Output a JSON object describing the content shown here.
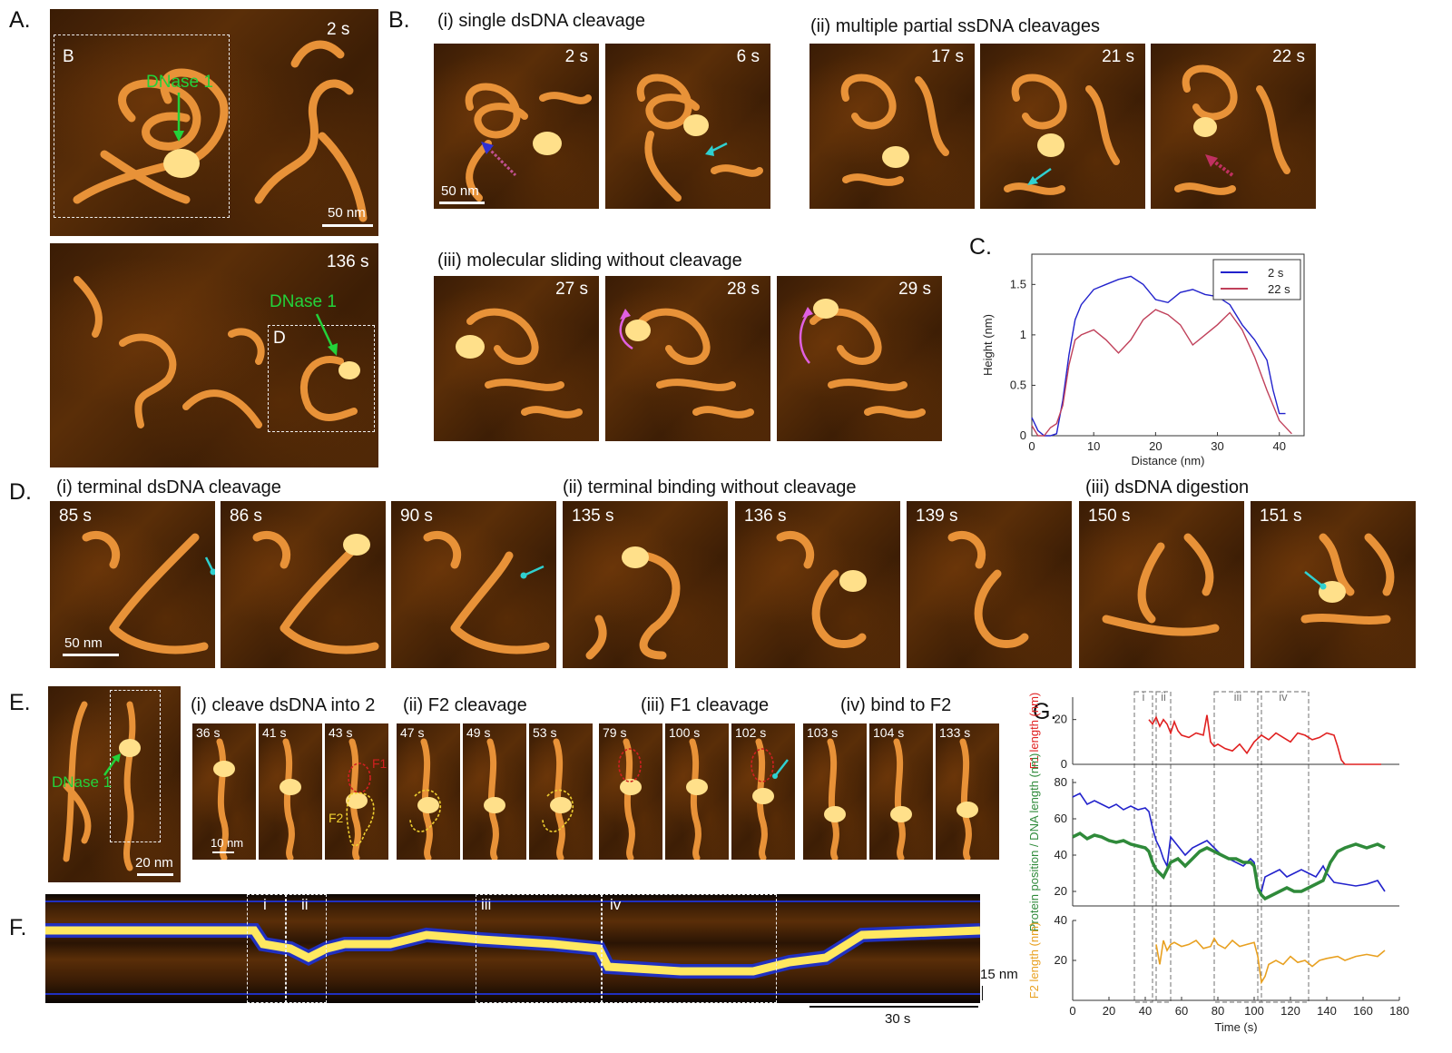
{
  "panel_labels": {
    "A": "A.",
    "B": "B.",
    "C": "C.",
    "D": "D.",
    "E": "E.",
    "F": "F.",
    "G": "G."
  },
  "panelA": {
    "top_time": "2 s",
    "bottom_time": "136 s",
    "box_B": "B",
    "box_D": "D",
    "protein_label": "DNase 1",
    "scale": "50 nm"
  },
  "panelB": {
    "i_title": "(i) single dsDNA cleavage",
    "ii_title": "(ii) multiple partial ssDNA cleavages",
    "iii_title": "(iii) molecular sliding without cleavage",
    "i_times": [
      "2 s",
      "6 s"
    ],
    "ii_times": [
      "17 s",
      "21 s",
      "22 s"
    ],
    "iii_times": [
      "27 s",
      "28 s",
      "29 s"
    ],
    "scale": "50 nm"
  },
  "panelD": {
    "i_title": "(i) terminal dsDNA cleavage",
    "ii_title": "(ii) terminal binding without cleavage",
    "iii_title": "(iii) dsDNA digestion",
    "times": [
      "85 s",
      "86 s",
      "90 s",
      "135 s",
      "136 s",
      "139 s",
      "150 s",
      "151 s"
    ],
    "scale": "50 nm"
  },
  "panelE": {
    "protein_label": "DNase 1",
    "scale_large": "20 nm",
    "scale_small": "10 nm",
    "i_title": "(i) cleave dsDNA into 2",
    "ii_title": "(ii) F2 cleavage",
    "iii_title": "(iii) F1 cleavage",
    "iv_title": "(iv) bind to F2",
    "times": [
      "36 s",
      "41 s",
      "43 s",
      "47 s",
      "49 s",
      "53 s",
      "79 s",
      "100 s",
      "102 s",
      "103 s",
      "104 s",
      "133 s"
    ],
    "f1": "F1",
    "f2": "F2"
  },
  "panelF": {
    "regions": [
      "i",
      "ii",
      "iii",
      "iv"
    ],
    "scale_y": "15 nm",
    "scale_x": "30 s"
  },
  "chart_data": [
    {
      "type": "line",
      "panel": "C",
      "xlabel": "Distance (nm)",
      "ylabel": "Height (nm)",
      "xlim": [
        0,
        44
      ],
      "ylim": [
        0,
        1.8
      ],
      "xticks": [
        0,
        10,
        20,
        30,
        40
      ],
      "yticks": [
        0,
        0.5,
        1,
        1.5
      ],
      "legend_position": "top-right",
      "series": [
        {
          "name": "2 s",
          "color": "#2222cc",
          "x": [
            0,
            1,
            2,
            3,
            4,
            5,
            6,
            7,
            8,
            10,
            12,
            14,
            16,
            18,
            20,
            22,
            24,
            26,
            28,
            30,
            32,
            34,
            36,
            38,
            39,
            40,
            41
          ],
          "y": [
            0.18,
            0.05,
            0.0,
            0.0,
            0.02,
            0.35,
            0.8,
            1.15,
            1.3,
            1.45,
            1.5,
            1.55,
            1.58,
            1.5,
            1.35,
            1.32,
            1.42,
            1.45,
            1.4,
            1.38,
            1.3,
            1.1,
            0.95,
            0.75,
            0.45,
            0.22,
            0.22
          ]
        },
        {
          "name": "22 s",
          "color": "#c0405a",
          "x": [
            0,
            1,
            2,
            3,
            4,
            5,
            6,
            7,
            8,
            10,
            12,
            14,
            16,
            18,
            20,
            22,
            24,
            26,
            28,
            30,
            32,
            34,
            36,
            38,
            40,
            42
          ],
          "y": [
            0.1,
            0.0,
            0.0,
            0.08,
            0.12,
            0.3,
            0.7,
            0.95,
            1.0,
            1.05,
            0.95,
            0.82,
            0.95,
            1.15,
            1.25,
            1.2,
            1.1,
            0.9,
            1.0,
            1.1,
            1.22,
            1.05,
            0.78,
            0.45,
            0.15,
            0.02
          ]
        }
      ]
    },
    {
      "type": "line",
      "panel": "G",
      "xlabel": "Time (s)",
      "xlim": [
        0,
        180
      ],
      "xticks": [
        0,
        20,
        40,
        60,
        80,
        100,
        120,
        140,
        160,
        180
      ],
      "regions": [
        {
          "label": "i",
          "x0": 34,
          "x1": 44
        },
        {
          "label": "ii",
          "x0": 46,
          "x1": 54
        },
        {
          "label": "iii",
          "x0": 78,
          "x1": 104
        },
        {
          "label": "iv",
          "x0": 102,
          "x1": 130
        }
      ],
      "subplots": [
        {
          "ylabel": "F1 length (nm)",
          "ylim": [
            0,
            30
          ],
          "yticks": [
            0,
            20
          ],
          "series": [
            {
              "name": "F1 length",
              "color": "#e02020",
              "x": [
                42,
                44,
                46,
                48,
                50,
                52,
                54,
                56,
                58,
                60,
                64,
                68,
                72,
                74,
                76,
                78,
                80,
                84,
                88,
                92,
                96,
                100,
                104,
                108,
                112,
                116,
                120,
                124,
                128,
                132,
                136,
                140,
                144,
                146,
                148,
                150,
                160,
                170
              ],
              "y": [
                20,
                18,
                21,
                17,
                20,
                18,
                14,
                19,
                15,
                13,
                12,
                14,
                13,
                22,
                10,
                8,
                9,
                7,
                6,
                9,
                5,
                10,
                13,
                11,
                14,
                12,
                10,
                14,
                13,
                11,
                12,
                14,
                13,
                8,
                2,
                0,
                0,
                0
              ]
            }
          ]
        },
        {
          "ylabel": "Protein position / DNA length (nm)",
          "ylim": [
            12,
            82
          ],
          "yticks": [
            20,
            40,
            60,
            80
          ],
          "series": [
            {
              "name": "DNA length",
              "color": "#2222cc",
              "x": [
                0,
                4,
                8,
                12,
                16,
                20,
                24,
                28,
                32,
                36,
                40,
                42,
                44,
                46,
                48,
                50,
                52,
                54,
                58,
                62,
                66,
                70,
                74,
                78,
                82,
                86,
                90,
                94,
                98,
                100,
                102,
                104,
                106,
                110,
                114,
                118,
                122,
                126,
                130,
                134,
                138,
                140,
                144,
                150,
                156,
                162,
                168,
                172
              ],
              "y": [
                72,
                74,
                68,
                70,
                68,
                66,
                68,
                65,
                67,
                65,
                66,
                64,
                55,
                48,
                44,
                38,
                34,
                50,
                45,
                40,
                44,
                46,
                48,
                44,
                40,
                38,
                36,
                34,
                38,
                36,
                22,
                20,
                28,
                30,
                32,
                28,
                30,
                32,
                30,
                28,
                34,
                30,
                25,
                24,
                23,
                24,
                26,
                20
              ]
            },
            {
              "name": "Protein position",
              "color": "#2f8a3a",
              "x": [
                0,
                4,
                8,
                12,
                16,
                20,
                24,
                28,
                32,
                36,
                40,
                42,
                44,
                46,
                48,
                50,
                54,
                58,
                62,
                66,
                70,
                74,
                78,
                82,
                86,
                90,
                94,
                98,
                100,
                102,
                104,
                106,
                110,
                114,
                118,
                122,
                126,
                130,
                134,
                138,
                142,
                146,
                150,
                156,
                162,
                168,
                172
              ],
              "y": [
                50,
                52,
                49,
                51,
                50,
                48,
                47,
                48,
                46,
                45,
                44,
                42,
                36,
                32,
                30,
                28,
                36,
                38,
                34,
                38,
                42,
                44,
                42,
                40,
                38,
                38,
                36,
                36,
                34,
                22,
                18,
                16,
                18,
                20,
                22,
                20,
                20,
                22,
                24,
                26,
                36,
                42,
                44,
                46,
                44,
                46,
                44
              ]
            }
          ]
        },
        {
          "ylabel": "F2 length (nm)",
          "ylim": [
            0,
            40
          ],
          "yticks": [
            20,
            40
          ],
          "series": [
            {
              "name": "F2 length",
              "color": "#e8a020",
              "x": [
                46,
                48,
                50,
                52,
                54,
                56,
                60,
                64,
                68,
                72,
                76,
                78,
                80,
                84,
                88,
                92,
                96,
                100,
                102,
                104,
                106,
                108,
                112,
                116,
                120,
                124,
                128,
                132,
                136,
                140,
                146,
                150,
                156,
                162,
                168,
                172
              ],
              "y": [
                28,
                18,
                30,
                25,
                28,
                29,
                27,
                28,
                30,
                26,
                27,
                31,
                28,
                26,
                30,
                27,
                28,
                29,
                22,
                9,
                12,
                18,
                20,
                18,
                22,
                19,
                20,
                17,
                20,
                21,
                22,
                20,
                22,
                23,
                22,
                25
              ]
            }
          ]
        }
      ]
    }
  ]
}
